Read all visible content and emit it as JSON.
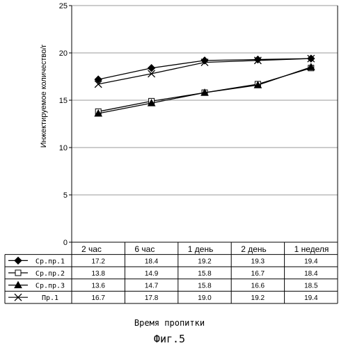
{
  "chart_data": {
    "type": "line",
    "categories": [
      "2 час",
      "6 час",
      "1 день",
      "2 день",
      "1 неделя"
    ],
    "ylim": [
      0,
      25
    ],
    "yticks": [
      0,
      5,
      10,
      15,
      20,
      25
    ],
    "grid": true,
    "ylabel": "Инжектируемое количество/г",
    "xlabel": "Время пропитки",
    "legend_placement": "table-below",
    "series": [
      {
        "name": "Ср.пр.1",
        "marker": "diamond",
        "values": [
          17.2,
          18.4,
          19.2,
          19.3,
          19.4
        ]
      },
      {
        "name": "Ср.пр.2",
        "marker": "square",
        "values": [
          13.8,
          14.9,
          15.8,
          16.7,
          18.4
        ]
      },
      {
        "name": "Ср.пр.3",
        "marker": "triangle",
        "values": [
          13.6,
          14.7,
          15.8,
          16.6,
          18.5
        ]
      },
      {
        "name": "Пр.1",
        "marker": "x",
        "values": [
          16.7,
          17.8,
          19.0,
          19.2,
          19.4
        ]
      }
    ],
    "table_values": [
      [
        "17.2",
        "18.4",
        "19.2",
        "19.3",
        "19.4"
      ],
      [
        "13.8",
        "14.9",
        "15.8",
        "16.7",
        "18.4"
      ],
      [
        "13.6",
        "14.7",
        "15.8",
        "16.6",
        "18.5"
      ],
      [
        "16.7",
        "17.8",
        "19.0",
        "19.2",
        "19.4"
      ]
    ]
  },
  "figure_caption": "Фиг.5",
  "colors": {
    "line": "#000000",
    "grid": "#9a9a9a",
    "background": "#ffffff"
  }
}
